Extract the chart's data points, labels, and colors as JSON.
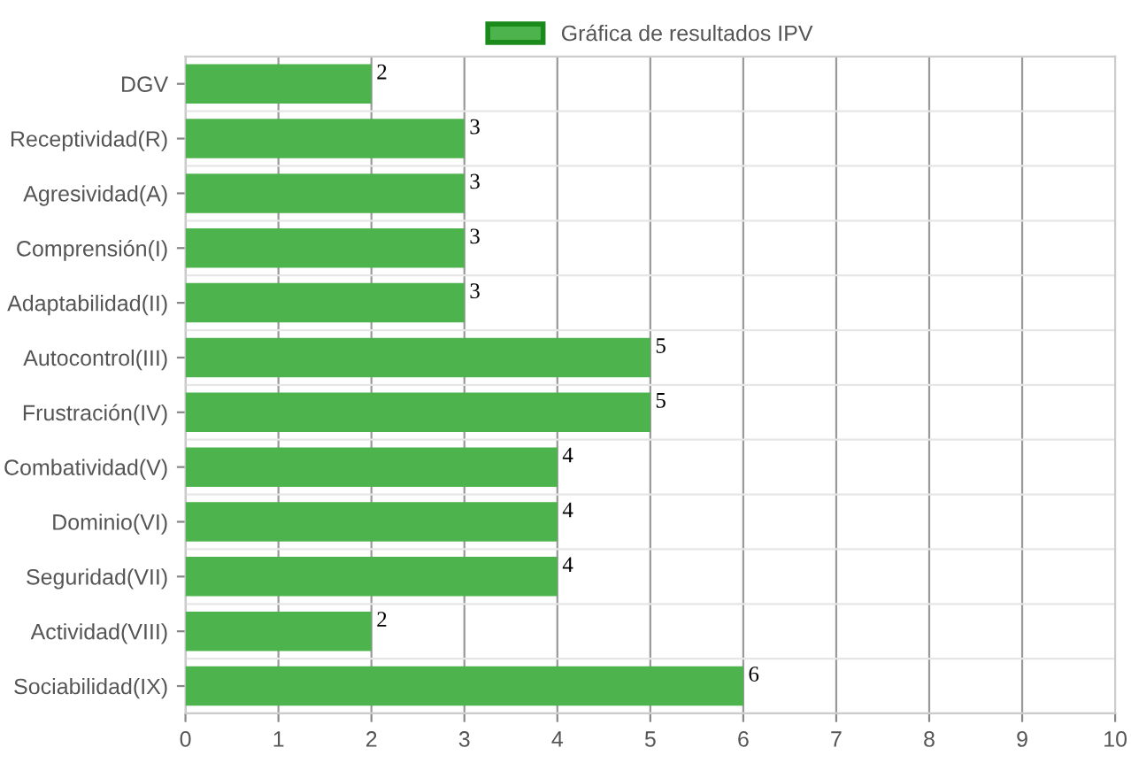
{
  "chart_data": {
    "type": "bar",
    "orientation": "horizontal",
    "categories": [
      "DGV",
      "Receptividad(R)",
      "Agresividad(A)",
      "Comprensión(I)",
      "Adaptabilidad(II)",
      "Autocontrol(III)",
      "Frustración(IV)",
      "Combatividad(V)",
      "Dominio(VI)",
      "Seguridad(VII)",
      "Actividad(VIII)",
      "Sociabilidad(IX)"
    ],
    "series": [
      {
        "name": "Gráfica de resultados IPV",
        "color": "#4db34d",
        "values": [
          2,
          3,
          3,
          3,
          3,
          5,
          5,
          4,
          4,
          4,
          2,
          6
        ]
      }
    ],
    "xlim": [
      0,
      10
    ],
    "xticks": [
      0,
      1,
      2,
      3,
      4,
      5,
      6,
      7,
      8,
      9,
      10
    ],
    "grid": true,
    "legend": "top",
    "data_labels": true
  }
}
